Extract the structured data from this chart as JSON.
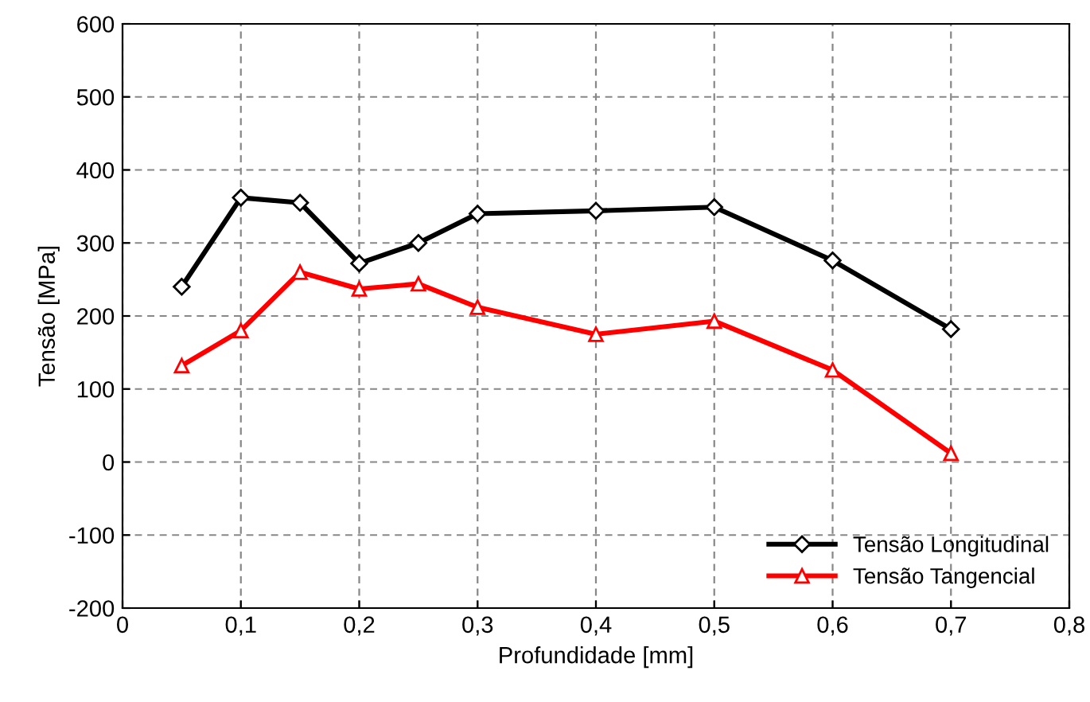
{
  "chart_data": {
    "type": "line",
    "xlabel": "Profundidade [mm]",
    "ylabel": "Tensão [MPa]",
    "x": [
      0.05,
      0.1,
      0.15,
      0.2,
      0.25,
      0.3,
      0.4,
      0.5,
      0.6,
      0.7
    ],
    "series": [
      {
        "name": "Tensão Longitudinal",
        "color": "#000000",
        "marker": "diamond",
        "values": [
          240,
          362,
          355,
          272,
          300,
          340,
          344,
          349,
          276,
          182
        ]
      },
      {
        "name": "Tensão Tangencial",
        "color": "#ff0000",
        "marker": "triangle",
        "values": [
          132,
          180,
          260,
          237,
          244,
          212,
          175,
          193,
          126,
          12
        ]
      }
    ],
    "xlim": [
      0,
      0.8
    ],
    "xticks": [
      0,
      {
        "value": 0.1,
        "label": "0,1"
      },
      {
        "value": 0.2,
        "label": "0,2"
      },
      {
        "value": 0.3,
        "label": "0,3"
      },
      {
        "value": 0.4,
        "label": "0,4"
      },
      {
        "value": 0.5,
        "label": "0,5"
      },
      {
        "value": 0.6,
        "label": "0,6"
      },
      {
        "value": 0.7,
        "label": "0,7"
      },
      {
        "value": 0.8,
        "label": "0,8"
      }
    ],
    "ylim": [
      -200,
      600
    ],
    "yticks": [
      -200,
      -100,
      0,
      100,
      200,
      300,
      400,
      500,
      600
    ],
    "grid": true,
    "legend": "bottom right",
    "line_style": "solid"
  }
}
